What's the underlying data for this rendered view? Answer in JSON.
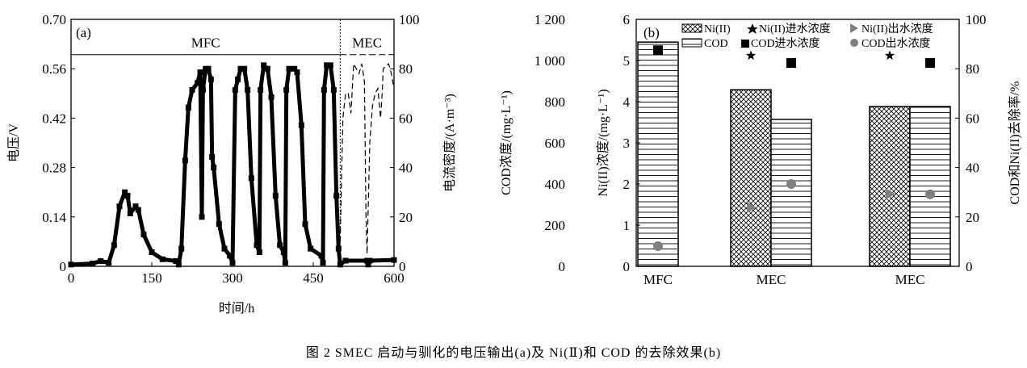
{
  "caption": "图 2   SMEC 启动与驯化的电压输出(a)及 Ni(Ⅱ)和 COD 的去除效果(b)",
  "chart_data": [
    {
      "type": "line",
      "panel_label": "(a)",
      "xlabel": "时间/h",
      "ylabel": "电压/V",
      "y2label": "电流密度/(A·m⁻³)",
      "xlim": [
        0,
        600
      ],
      "ylim": [
        0,
        0.7
      ],
      "y2lim": [
        0,
        100
      ],
      "xticks": [
        "0",
        "150",
        "300",
        "450",
        "600"
      ],
      "yticks": [
        "0",
        "0.14",
        "0.28",
        "0.42",
        "0.56",
        "0.70"
      ],
      "y2ticks": [
        "0",
        "20",
        "40",
        "60",
        "80",
        "100"
      ],
      "phases": [
        {
          "label": "MFC",
          "range": [
            0,
            500
          ]
        },
        {
          "label": "MEC",
          "range": [
            500,
            600
          ]
        }
      ],
      "phase_band_level_V": 0.6,
      "series": [
        {
          "name": "电压",
          "axis": "left",
          "style": "line-square-markers",
          "points": [
            [
              0,
              0.005
            ],
            [
              40,
              0.008
            ],
            [
              55,
              0.015
            ],
            [
              70,
              0.01
            ],
            [
              80,
              0.06
            ],
            [
              90,
              0.17
            ],
            [
              100,
              0.21
            ],
            [
              105,
              0.2
            ],
            [
              110,
              0.15
            ],
            [
              120,
              0.17
            ],
            [
              125,
              0.16
            ],
            [
              135,
              0.09
            ],
            [
              150,
              0.04
            ],
            [
              170,
              0.02
            ],
            [
              195,
              0.015
            ],
            [
              200,
              0.005
            ],
            [
              205,
              0.05
            ],
            [
              212,
              0.3
            ],
            [
              218,
              0.45
            ],
            [
              225,
              0.5
            ],
            [
              235,
              0.52
            ],
            [
              240,
              0.55
            ],
            [
              243,
              0.14
            ],
            [
              245,
              0.5
            ],
            [
              250,
              0.56
            ],
            [
              255,
              0.56
            ],
            [
              260,
              0.53
            ],
            [
              262,
              0.31
            ],
            [
              265,
              0.28
            ],
            [
              275,
              0.12
            ],
            [
              285,
              0.05
            ],
            [
              295,
              0.03
            ],
            [
              300,
              0.01
            ],
            [
              305,
              0.5
            ],
            [
              310,
              0.53
            ],
            [
              315,
              0.56
            ],
            [
              322,
              0.56
            ],
            [
              328,
              0.5
            ],
            [
              335,
              0.25
            ],
            [
              345,
              0.06
            ],
            [
              350,
              0.04
            ],
            [
              352,
              0.5
            ],
            [
              358,
              0.57
            ],
            [
              365,
              0.56
            ],
            [
              372,
              0.48
            ],
            [
              380,
              0.2
            ],
            [
              388,
              0.06
            ],
            [
              395,
              0.04
            ],
            [
              398,
              0.01
            ],
            [
              400,
              0.5
            ],
            [
              405,
              0.56
            ],
            [
              415,
              0.56
            ],
            [
              420,
              0.55
            ],
            [
              428,
              0.4
            ],
            [
              435,
              0.12
            ],
            [
              445,
              0.05
            ],
            [
              465,
              0.03
            ],
            [
              468,
              0.01
            ],
            [
              470,
              0.5
            ],
            [
              475,
              0.57
            ],
            [
              482,
              0.57
            ],
            [
              488,
              0.5
            ],
            [
              493,
              0.2
            ],
            [
              497,
              0.05
            ],
            [
              500,
              0.005
            ],
            [
              510,
              0.016
            ],
            [
              550,
              0.016
            ],
            [
              552,
              0.005
            ],
            [
              555,
              0.016
            ],
            [
              600,
              0.018
            ]
          ]
        },
        {
          "name": "电流密度",
          "axis": "right",
          "style": "dashed",
          "points": [
            [
              500,
              10
            ],
            [
              505,
              60
            ],
            [
              510,
              70
            ],
            [
              515,
              70
            ],
            [
              520,
              62
            ],
            [
              525,
              82
            ],
            [
              535,
              78
            ],
            [
              540,
              82
            ],
            [
              545,
              75
            ],
            [
              548,
              20
            ],
            [
              550,
              5
            ],
            [
              555,
              50
            ],
            [
              560,
              65
            ],
            [
              565,
              70
            ],
            [
              570,
              72
            ],
            [
              575,
              60
            ],
            [
              578,
              70
            ],
            [
              580,
              80
            ],
            [
              590,
              82
            ],
            [
              595,
              78
            ],
            [
              600,
              72
            ]
          ]
        }
      ]
    },
    {
      "type": "bar",
      "panel_label": "(b)",
      "categories": [
        "MFC",
        "MEC",
        "MEC"
      ],
      "ylabel_ni": "Ni(II)浓度/(mg·L⁻¹)",
      "ylabel_cod": "COD浓度/(mg·L⁻¹)",
      "y2label": "COD和Ni(II)去除率/%",
      "ylim_ni": [
        0,
        6
      ],
      "ylim_cod": [
        0,
        1200
      ],
      "y2lim": [
        0,
        100
      ],
      "yticks_ni": [
        "0",
        "1",
        "2",
        "3",
        "4",
        "5",
        "6"
      ],
      "yticks_cod": [
        "0",
        "200",
        "400",
        "600",
        "800",
        "1 000",
        "1 200"
      ],
      "y2ticks": [
        "0",
        "20",
        "40",
        "60",
        "80",
        "100"
      ],
      "legend": [
        "Ni(II)",
        "COD",
        "Ni(II)进水浓度",
        "COD进水浓度",
        "Ni(II)出水浓度",
        "COD出水浓度"
      ],
      "bars": {
        "Ni(II)_removal_pct": [
          null,
          71.5,
          64.7
        ],
        "COD_removal_pct": [
          90.8,
          59.5,
          64.7
        ]
      },
      "markers": {
        "Ni(II)进水浓度": [
          null,
          5.12,
          5.12
        ],
        "COD进水浓度": [
          1050,
          988,
          988
        ],
        "Ni(II)出水浓度": [
          null,
          1.43,
          1.76
        ],
        "COD出水浓度": [
          98,
          400,
          350
        ]
      }
    }
  ]
}
